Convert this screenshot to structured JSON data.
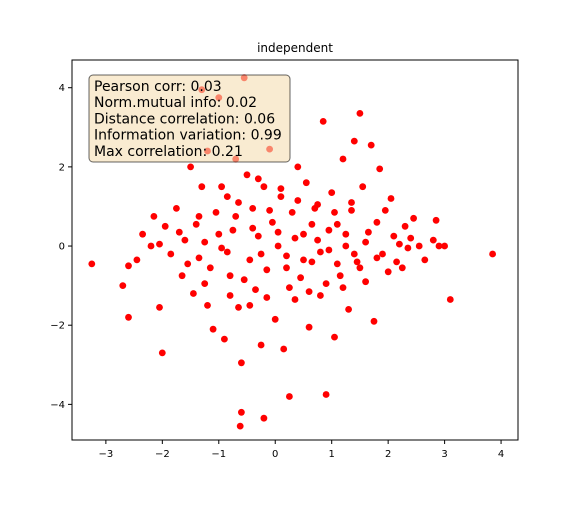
{
  "chart_data": {
    "type": "scatter",
    "title": "independent",
    "xlabel": "",
    "ylabel": "",
    "xlim": [
      -3.6,
      4.3
    ],
    "ylim": [
      -4.9,
      4.7
    ],
    "x_ticks": [
      -3,
      -2,
      -1,
      0,
      1,
      2,
      3,
      4
    ],
    "y_ticks": [
      -4,
      -2,
      0,
      2,
      4
    ],
    "grid": false,
    "point_color": "#ff0000",
    "annotation_lines": [
      "Pearson corr: 0.03",
      "Norm.mutual info: 0.02",
      "Distance correlation: 0.06",
      "Information variation: 0.99",
      "Max correlation: 0.21"
    ],
    "annotation_box_fill": "#f5deb3",
    "annotation_box_edge": "#000000",
    "series": [
      {
        "values": [
          [
            -3.25,
            -0.45
          ],
          [
            -2.7,
            -1.0
          ],
          [
            -2.6,
            -1.8
          ],
          [
            -2.6,
            -0.5
          ],
          [
            -2.45,
            -0.35
          ],
          [
            -2.35,
            0.3
          ],
          [
            -2.2,
            0.0
          ],
          [
            -2.15,
            0.75
          ],
          [
            -2.05,
            -1.55
          ],
          [
            -2.0,
            -2.7
          ],
          [
            -2.05,
            0.05
          ],
          [
            -1.95,
            0.5
          ],
          [
            -1.85,
            -0.2
          ],
          [
            -1.75,
            0.95
          ],
          [
            -1.65,
            -0.75
          ],
          [
            -1.6,
            0.15
          ],
          [
            -1.5,
            2.0
          ],
          [
            -1.45,
            -1.2
          ],
          [
            -1.4,
            0.55
          ],
          [
            -1.35,
            -0.3
          ],
          [
            -1.3,
            3.95
          ],
          [
            -1.3,
            1.5
          ],
          [
            -1.25,
            0.1
          ],
          [
            -1.2,
            -1.5
          ],
          [
            -1.2,
            2.4
          ],
          [
            -1.1,
            -2.1
          ],
          [
            -1.05,
            0.85
          ],
          [
            -1.0,
            3.75
          ],
          [
            -0.95,
            -0.05
          ],
          [
            -0.9,
            -2.35
          ],
          [
            -0.85,
            1.25
          ],
          [
            -0.8,
            -0.75
          ],
          [
            -0.75,
            0.4
          ],
          [
            -0.7,
            2.2
          ],
          [
            -0.65,
            -1.55
          ],
          [
            -0.6,
            -2.95
          ],
          [
            -0.6,
            -4.2
          ],
          [
            -0.62,
            -4.55
          ],
          [
            -0.55,
            4.25
          ],
          [
            -0.5,
            1.8
          ],
          [
            -0.45,
            -0.35
          ],
          [
            -0.4,
            0.95
          ],
          [
            -0.35,
            -1.1
          ],
          [
            -0.3,
            0.25
          ],
          [
            -0.25,
            -2.5
          ],
          [
            -0.2,
            1.5
          ],
          [
            -0.2,
            -4.35
          ],
          [
            -0.15,
            -0.6
          ],
          [
            -0.1,
            2.45
          ],
          [
            -0.05,
            0.6
          ],
          [
            0.0,
            -1.85
          ],
          [
            0.05,
            0.0
          ],
          [
            0.1,
            1.25
          ],
          [
            0.15,
            -2.6
          ],
          [
            0.2,
            -0.25
          ],
          [
            0.25,
            -3.8
          ],
          [
            0.3,
            0.85
          ],
          [
            0.35,
            -1.35
          ],
          [
            0.4,
            2.0
          ],
          [
            0.45,
            -0.8
          ],
          [
            0.5,
            0.3
          ],
          [
            0.55,
            1.6
          ],
          [
            0.6,
            -2.05
          ],
          [
            0.65,
            -0.4
          ],
          [
            0.7,
            0.95
          ],
          [
            0.75,
            0.15
          ],
          [
            0.8,
            -1.25
          ],
          [
            0.85,
            3.15
          ],
          [
            0.9,
            -3.75
          ],
          [
            0.95,
            -0.1
          ],
          [
            1.0,
            1.35
          ],
          [
            1.05,
            -2.3
          ],
          [
            1.1,
            0.55
          ],
          [
            1.15,
            -0.75
          ],
          [
            1.2,
            2.2
          ],
          [
            1.25,
            0.0
          ],
          [
            1.3,
            -1.6
          ],
          [
            1.35,
            0.9
          ],
          [
            1.4,
            2.65
          ],
          [
            1.45,
            -0.4
          ],
          [
            1.5,
            3.35
          ],
          [
            1.55,
            1.5
          ],
          [
            1.6,
            -0.9
          ],
          [
            1.65,
            0.35
          ],
          [
            1.7,
            2.55
          ],
          [
            1.75,
            -1.9
          ],
          [
            1.8,
            0.6
          ],
          [
            1.85,
            1.95
          ],
          [
            1.9,
            -0.2
          ],
          [
            1.95,
            0.9
          ],
          [
            2.0,
            -0.65
          ],
          [
            2.05,
            1.2
          ],
          [
            2.1,
            0.25
          ],
          [
            2.15,
            -0.4
          ],
          [
            2.2,
            0.05
          ],
          [
            2.25,
            -0.55
          ],
          [
            2.3,
            0.5
          ],
          [
            2.35,
            -0.05
          ],
          [
            2.4,
            0.2
          ],
          [
            2.45,
            0.7
          ],
          [
            2.55,
            0.0
          ],
          [
            2.65,
            -0.35
          ],
          [
            2.8,
            0.15
          ],
          [
            2.85,
            0.65
          ],
          [
            2.9,
            0.0
          ],
          [
            3.0,
            0.0
          ],
          [
            3.1,
            -1.35
          ],
          [
            3.85,
            -0.2
          ],
          [
            -1.15,
            -0.55
          ],
          [
            -1.0,
            0.3
          ],
          [
            -0.85,
            -0.15
          ],
          [
            -0.7,
            0.75
          ],
          [
            -0.55,
            -0.85
          ],
          [
            -0.4,
            0.45
          ],
          [
            -0.25,
            -0.2
          ],
          [
            -0.1,
            0.9
          ],
          [
            0.05,
            0.35
          ],
          [
            0.2,
            -0.55
          ],
          [
            0.35,
            0.2
          ],
          [
            0.5,
            -0.35
          ],
          [
            0.65,
            0.55
          ],
          [
            0.8,
            -0.15
          ],
          [
            0.95,
            0.4
          ],
          [
            1.1,
            -0.45
          ],
          [
            1.25,
            0.3
          ],
          [
            1.4,
            -0.2
          ],
          [
            1.6,
            0.1
          ],
          [
            1.8,
            -0.3
          ],
          [
            -1.7,
            0.35
          ],
          [
            -1.55,
            -0.45
          ],
          [
            -1.35,
            0.75
          ],
          [
            -1.25,
            -0.95
          ],
          [
            -0.95,
            1.5
          ],
          [
            -0.8,
            -1.25
          ],
          [
            -0.65,
            1.1
          ],
          [
            -0.45,
            -1.5
          ],
          [
            -0.3,
            1.7
          ],
          [
            -0.15,
            -1.3
          ],
          [
            0.1,
            1.45
          ],
          [
            0.25,
            -1.05
          ],
          [
            0.4,
            1.15
          ],
          [
            0.6,
            -1.15
          ],
          [
            0.75,
            1.05
          ],
          [
            0.9,
            -0.95
          ],
          [
            1.05,
            0.85
          ],
          [
            1.2,
            -1.05
          ],
          [
            1.35,
            1.1
          ],
          [
            1.5,
            -0.55
          ]
        ]
      }
    ]
  }
}
